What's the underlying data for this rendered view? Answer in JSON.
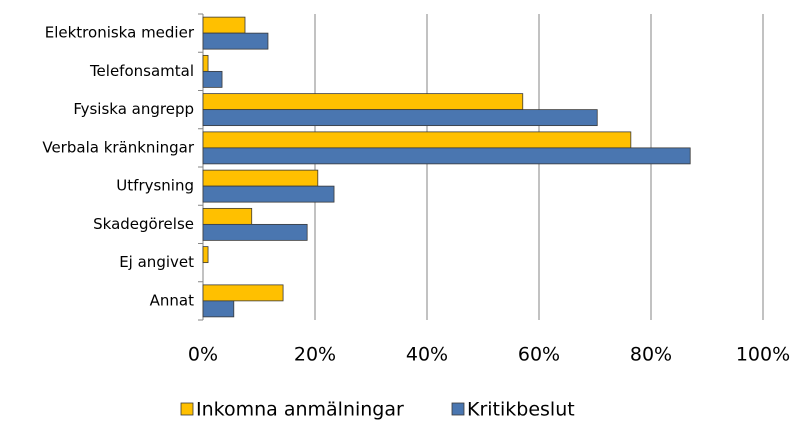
{
  "chart_data": {
    "type": "hbar",
    "categories": [
      "Elektroniska medier",
      "Telefonsamtal",
      "Fysiska angrepp",
      "Verbala kränkningar",
      "Utfrysning",
      "Skadegörelse",
      "Ej angivet",
      "Annat"
    ],
    "series": [
      {
        "name": "Inkomna anmälningar",
        "color": "#ffc000",
        "values": [
          7.5,
          0.9,
          57.1,
          76.4,
          20.5,
          8.7,
          0.9,
          14.3
        ]
      },
      {
        "name": "Kritikbeslut",
        "color": "#4a76b0",
        "values": [
          11.6,
          3.4,
          70.4,
          87,
          23.4,
          18.6,
          0,
          5.5
        ]
      }
    ],
    "xlim": [
      0,
      100
    ],
    "xticks": [
      {
        "value": 0,
        "label": "0%"
      },
      {
        "value": 20,
        "label": "20%"
      },
      {
        "value": 40,
        "label": "40%"
      },
      {
        "value": 60,
        "label": "60%"
      },
      {
        "value": 80,
        "label": "80%"
      },
      {
        "value": 100,
        "label": "100%"
      }
    ],
    "grid": true,
    "legend": "bottom"
  }
}
